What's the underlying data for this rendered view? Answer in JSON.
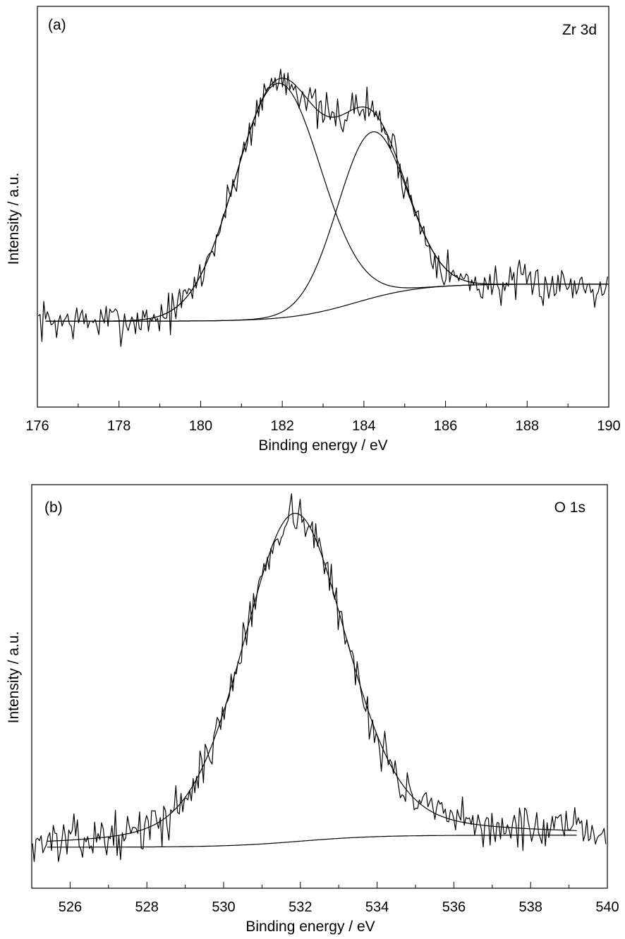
{
  "chart_data": [
    {
      "type": "line",
      "panel_label": "(a)",
      "annotation": "Zr 3d",
      "xlabel": "Binding energy / eV",
      "ylabel": "Intensity / a.u.",
      "xlim": [
        176,
        190
      ],
      "ylim": [
        -0.3,
        1.1
      ],
      "x_ticks": [
        "176",
        "178",
        "180",
        "182",
        "184",
        "186",
        "188",
        "190"
      ],
      "x_tick_values": [
        176,
        178,
        180,
        182,
        184,
        186,
        188,
        190
      ],
      "y_ticks_shown": false,
      "grid": false,
      "legend": "none",
      "background": {
        "start": 0.0,
        "end": 0.13,
        "center": 183.8,
        "width": 0.8,
        "range": [
          176.2,
          190
        ]
      },
      "peaks": [
        {
          "center": 181.9,
          "height": 0.82,
          "sigma": 1.05
        },
        {
          "center": 184.2,
          "height": 0.58,
          "sigma": 0.85
        }
      ],
      "noise_amplitude": 0.035,
      "seed": 7
    },
    {
      "type": "line",
      "panel_label": "(b)",
      "annotation": "O 1s",
      "xlabel": "Binding energy / eV",
      "ylabel": "Intensity / a.u.",
      "xlim": [
        525,
        540
      ],
      "ylim": [
        -0.12,
        1.06
      ],
      "x_ticks": [
        "526",
        "528",
        "530",
        "532",
        "534",
        "536",
        "538",
        "540"
      ],
      "x_tick_values": [
        526,
        528,
        530,
        532,
        534,
        536,
        538,
        540
      ],
      "y_ticks_shown": false,
      "grid": false,
      "legend": "none",
      "background": {
        "start": 0.0,
        "end": 0.035,
        "center": 532.0,
        "width": 1.0,
        "range": [
          525.4,
          539.2
        ]
      },
      "peaks": [
        {
          "center": 531.85,
          "height": 0.96,
          "sigma": 1.35,
          "shape": "voigt"
        }
      ],
      "noise_amplitude": 0.03,
      "seed": 13
    }
  ]
}
